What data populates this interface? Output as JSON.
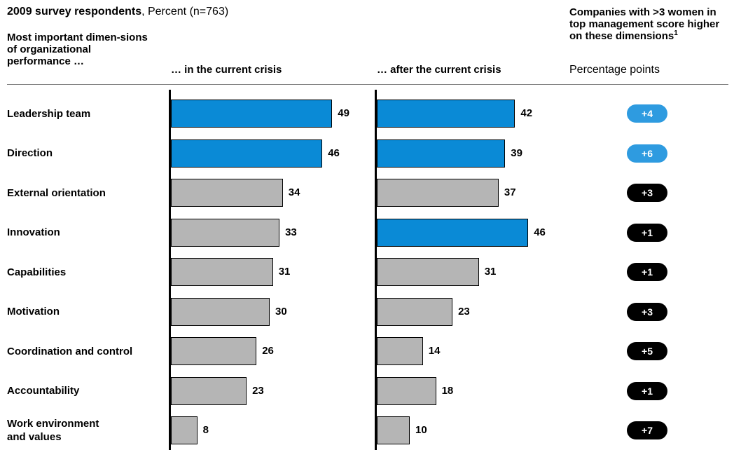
{
  "header": {
    "title_bold": "2009 survey respondents",
    "title_rest": ", Percent (n=763)",
    "dimensions_header": "Most important dimen-sions of organizational performance …",
    "current_header": "… in the current crisis",
    "after_header": "… after the current crisis",
    "companies_header": "Companies with >3 women in top management score higher on these dimensions",
    "companies_footnote": "1",
    "companies_units": "Percentage points"
  },
  "colors": {
    "highlight": "#0a8ad6",
    "neutral": "#b5b5b5",
    "pill_highlight": "#2e9be0",
    "pill_dark": "#000000"
  },
  "chart_data": {
    "type": "bar",
    "orientation": "horizontal",
    "categories": [
      "Leadership team",
      "Direction",
      "External orientation",
      "Innovation",
      "Capabilities",
      "Motivation",
      "Coordination and control",
      "Accountability",
      "Work environment and values"
    ],
    "category_lines": [
      [
        "Leadership team"
      ],
      [
        "Direction"
      ],
      [
        "External orientation"
      ],
      [
        "Innovation"
      ],
      [
        "Capabilities"
      ],
      [
        "Motivation"
      ],
      [
        "Coordination and control"
      ],
      [
        "Accountability"
      ],
      [
        "Work environment",
        "and values"
      ]
    ],
    "series": [
      {
        "values": [
          49,
          46,
          34,
          33,
          31,
          30,
          26,
          23,
          8
        ],
        "highlighted": [
          true,
          true,
          false,
          false,
          false,
          false,
          false,
          false,
          false
        ]
      },
      {
        "values": [
          42,
          39,
          37,
          46,
          31,
          23,
          14,
          18,
          10
        ],
        "highlighted": [
          true,
          true,
          false,
          true,
          false,
          false,
          false,
          false,
          false
        ]
      }
    ],
    "difference": {
      "labels": [
        "+4",
        "+6",
        "+3",
        "+1",
        "+1",
        "+3",
        "+5",
        "+1",
        "+7"
      ],
      "values": [
        4,
        6,
        3,
        1,
        1,
        3,
        5,
        1,
        7
      ],
      "highlighted": [
        true,
        true,
        false,
        false,
        false,
        false,
        false,
        false,
        false
      ]
    },
    "xlim": [
      0,
      50
    ],
    "grid": false
  }
}
